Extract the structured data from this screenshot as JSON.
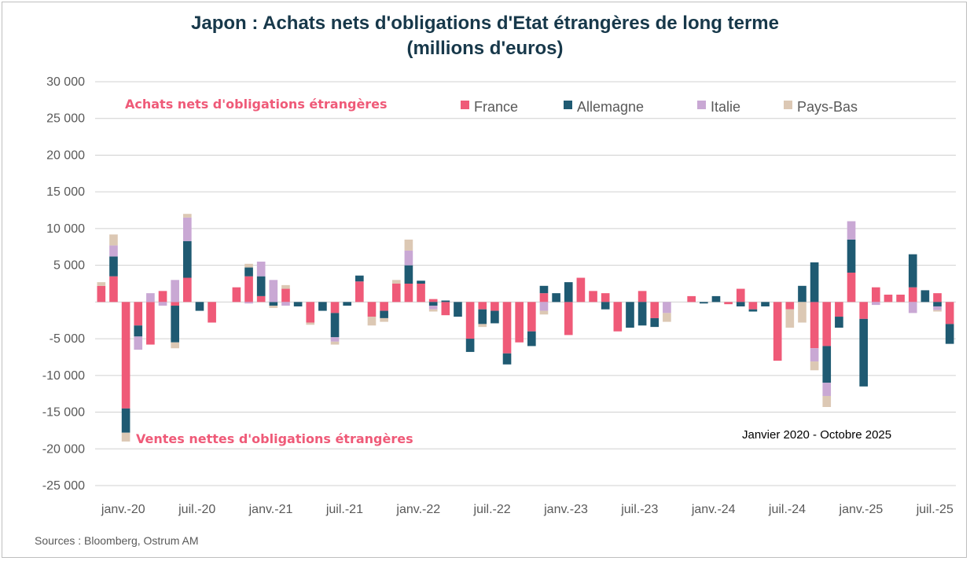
{
  "title_line1": "Japon : Achats nets d'obligations d'Etat étrangères de long terme",
  "title_line2": "(millions d'euros)",
  "source": "Sources : Bloomberg, Ostrum AM",
  "annotations": {
    "buy": "Achats nets d'obligations étrangères",
    "sell": "Ventes nettes d'obligations étrangères",
    "period": "Janvier 2020 - Octobre 2025"
  },
  "colors": {
    "France": "#ef5a78",
    "Allemagne": "#1f5a72",
    "Italie": "#c9a8d4",
    "Pays-Bas": "#dcc8b4",
    "grid": "#d0d0d0",
    "axis_text": "#595959",
    "title": "#17384a"
  },
  "chart_data": {
    "type": "bar",
    "stacked": true,
    "ylim": [
      -25000,
      30000
    ],
    "yticks": [
      30000,
      25000,
      20000,
      15000,
      10000,
      5000,
      0,
      -5000,
      -10000,
      -15000,
      -20000,
      -25000
    ],
    "ytick_labels": [
      "30 000",
      "25 000",
      "20 000",
      "15 000",
      "10 000",
      "5 000",
      "",
      "-5 000",
      "-10 000",
      "-15 000",
      "-20 000",
      "-25 000"
    ],
    "grid": true,
    "legend_position": "top",
    "xtick_labels": [
      {
        "index": 0,
        "label": "janv.-20"
      },
      {
        "index": 6,
        "label": "juil.-20"
      },
      {
        "index": 12,
        "label": "janv.-21"
      },
      {
        "index": 18,
        "label": "juil.-21"
      },
      {
        "index": 24,
        "label": "janv.-22"
      },
      {
        "index": 30,
        "label": "juil.-22"
      },
      {
        "index": 36,
        "label": "janv.-23"
      },
      {
        "index": 42,
        "label": "juil.-23"
      },
      {
        "index": 48,
        "label": "janv.-24"
      },
      {
        "index": 54,
        "label": "juil.-24"
      },
      {
        "index": 60,
        "label": "janv.-25"
      },
      {
        "index": 66,
        "label": "juil.-25"
      }
    ],
    "categories": [
      "2020-01",
      "2020-02",
      "2020-03",
      "2020-04",
      "2020-05",
      "2020-06",
      "2020-07",
      "2020-08",
      "2020-09",
      "2020-10",
      "2020-11",
      "2020-12",
      "2021-01",
      "2021-02",
      "2021-03",
      "2021-04",
      "2021-05",
      "2021-06",
      "2021-07",
      "2021-08",
      "2021-09",
      "2021-10",
      "2021-11",
      "2021-12",
      "2022-01",
      "2022-02",
      "2022-03",
      "2022-04",
      "2022-05",
      "2022-06",
      "2022-07",
      "2022-08",
      "2022-09",
      "2022-10",
      "2022-11",
      "2022-12",
      "2023-01",
      "2023-02",
      "2023-03",
      "2023-04",
      "2023-05",
      "2023-06",
      "2023-07",
      "2023-08",
      "2023-09",
      "2023-10",
      "2023-11",
      "2023-12",
      "2024-01",
      "2024-02",
      "2024-03",
      "2024-04",
      "2024-05",
      "2024-06",
      "2024-07",
      "2024-08",
      "2024-09",
      "2024-10",
      "2024-11",
      "2024-12",
      "2025-01",
      "2025-02",
      "2025-03",
      "2025-04",
      "2025-05",
      "2025-06",
      "2025-07",
      "2025-08",
      "2025-09",
      "2025-10"
    ],
    "series": [
      {
        "name": "France",
        "values": [
          2200,
          3500,
          -14500,
          -3200,
          -5800,
          1500,
          -500,
          3300,
          0,
          -2800,
          0,
          2000,
          3500,
          800,
          0,
          1800,
          0,
          -2800,
          0,
          -1500,
          0,
          2800,
          -2000,
          -1200,
          2500,
          2500,
          2500,
          400,
          -1800,
          0,
          -5000,
          -1000,
          -1200,
          -7000,
          -5500,
          -4000,
          1200,
          0,
          -4500,
          3300,
          1500,
          1200,
          -4000,
          0,
          1500,
          -2200,
          0,
          0,
          800,
          0,
          0,
          -300,
          1800,
          -1000,
          0,
          -8000,
          -1000,
          0,
          -6300,
          -6000,
          -2000,
          4000,
          -2300,
          2000,
          1000,
          1000,
          2000,
          0,
          1200,
          -3000
        ]
      },
      {
        "name": "Allemagne",
        "values": [
          0,
          2700,
          -3300,
          -1500,
          0,
          0,
          -5000,
          5000,
          -1200,
          0,
          0,
          0,
          1200,
          2700,
          -500,
          0,
          -600,
          0,
          -1200,
          -3300,
          -500,
          800,
          0,
          -1000,
          0,
          2500,
          400,
          -500,
          200,
          -2000,
          -1800,
          -2000,
          -1700,
          -1500,
          0,
          -2000,
          1000,
          1200,
          2700,
          0,
          0,
          -1000,
          0,
          -3500,
          -3200,
          -1200,
          0,
          0,
          0,
          -200,
          800,
          0,
          -600,
          -300,
          -600,
          0,
          0,
          2200,
          5400,
          -5000,
          -1500,
          4500,
          -9200,
          0,
          0,
          0,
          4500,
          1600,
          -600,
          -2700
        ]
      },
      {
        "name": "Italie",
        "values": [
          0,
          1500,
          0,
          -1800,
          1200,
          -500,
          3000,
          3200,
          0,
          0,
          0,
          0,
          -200,
          2000,
          3000,
          -500,
          0,
          0,
          0,
          -600,
          0,
          0,
          0,
          0,
          0,
          2000,
          0,
          -500,
          0,
          0,
          0,
          0,
          0,
          0,
          0,
          0,
          -1200,
          0,
          0,
          0,
          0,
          0,
          0,
          0,
          0,
          0,
          -1500,
          0,
          0,
          0,
          0,
          0,
          0,
          0,
          0,
          0,
          0,
          0,
          -1800,
          -1800,
          0,
          2500,
          0,
          -400,
          0,
          0,
          -1500,
          0,
          -500,
          0
        ]
      },
      {
        "name": "Pays-Bas",
        "values": [
          500,
          1500,
          -1200,
          0,
          0,
          0,
          -800,
          500,
          0,
          0,
          0,
          0,
          500,
          0,
          -300,
          500,
          0,
          -300,
          0,
          -400,
          0,
          0,
          -1200,
          -500,
          500,
          1500,
          0,
          -300,
          0,
          0,
          0,
          -400,
          0,
          0,
          0,
          0,
          -500,
          0,
          0,
          0,
          0,
          0,
          0,
          0,
          0,
          0,
          -1200,
          0,
          0,
          0,
          0,
          0,
          0,
          0,
          0,
          0,
          -2500,
          -2800,
          -1200,
          -1500,
          0,
          0,
          0,
          0,
          0,
          0,
          0,
          0,
          -200,
          0
        ]
      }
    ]
  }
}
